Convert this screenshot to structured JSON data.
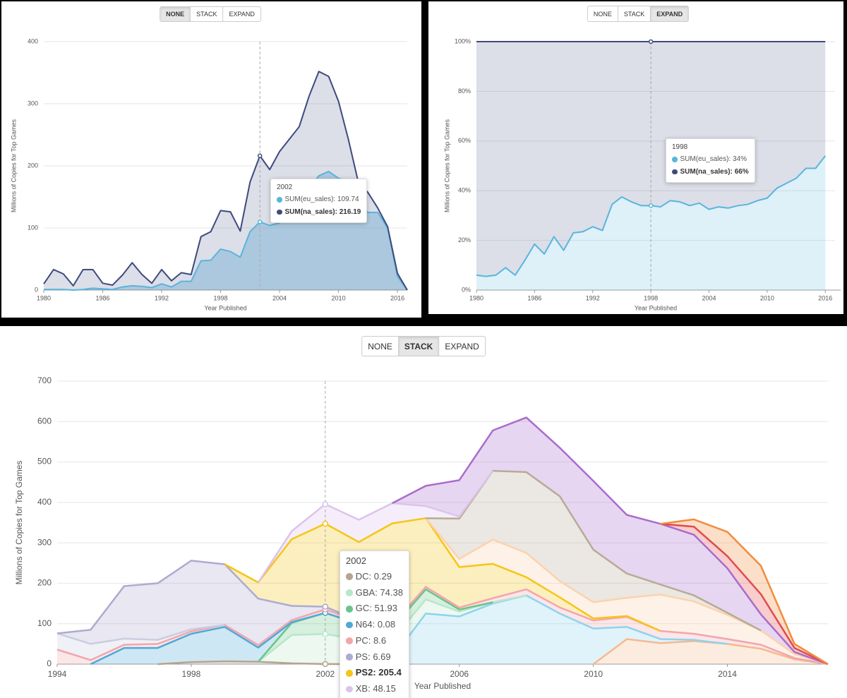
{
  "chart_data": [
    {
      "type": "area",
      "stacked": false,
      "grid": true,
      "controls": [
        "NONE",
        "STACK",
        "EXPAND"
      ],
      "active_control": 0,
      "xlabel": "Year Published",
      "ylabel": "Millions of Copies for Top Games",
      "x": [
        1980,
        1981,
        1982,
        1983,
        1984,
        1985,
        1986,
        1987,
        1988,
        1989,
        1990,
        1991,
        1992,
        1993,
        1994,
        1995,
        1996,
        1997,
        1998,
        1999,
        2000,
        2001,
        2002,
        2003,
        2004,
        2005,
        2006,
        2007,
        2008,
        2009,
        2010,
        2011,
        2012,
        2013,
        2014,
        2015,
        2016,
        2017
      ],
      "xlim": [
        1980,
        2017
      ],
      "xticks": [
        1980,
        1986,
        1992,
        1998,
        2004,
        2010,
        2016
      ],
      "ylim": [
        0,
        400
      ],
      "yticks": [
        0,
        100,
        200,
        300,
        400
      ],
      "series": [
        {
          "color": "#5ab4dc",
          "values": [
            1,
            1,
            1,
            0,
            1,
            3,
            2,
            1,
            5,
            7,
            6,
            4,
            10,
            5,
            14,
            14,
            47,
            48,
            66,
            62,
            53,
            94,
            109.74,
            104,
            108,
            130,
            150,
            165,
            184,
            191,
            180,
            175,
            140,
            125,
            125,
            100,
            22,
            0
          ]
        },
        {
          "color": "#3f4a7e",
          "values": [
            10,
            33,
            26,
            7,
            33,
            33,
            11,
            8,
            24,
            44,
            25,
            11,
            33,
            15,
            28,
            25,
            86,
            94,
            128,
            126,
            95,
            174,
            216.19,
            194,
            223,
            243,
            263,
            312,
            352,
            344,
            304,
            243,
            175,
            157,
            132,
            102,
            27,
            0
          ]
        }
      ],
      "tooltip": {
        "title": "2002",
        "lines": [
          {
            "text": "SUM(eu_sales): 109.74",
            "color": "#5ab4dc"
          },
          {
            "text": "SUM(na_sales): 216.19",
            "color": "#3f4a7e",
            "bold": true
          }
        ]
      }
    },
    {
      "type": "area",
      "stacked": true,
      "grid": true,
      "controls": [
        "NONE",
        "STACK",
        "EXPAND"
      ],
      "active_control": 2,
      "xlabel": "Year Published",
      "ylabel": "Millions of Copies for Top Games",
      "x": [
        1980,
        1981,
        1982,
        1983,
        1984,
        1985,
        1986,
        1987,
        1988,
        1989,
        1990,
        1991,
        1992,
        1993,
        1994,
        1995,
        1996,
        1997,
        1998,
        1999,
        2000,
        2001,
        2002,
        2003,
        2004,
        2005,
        2006,
        2007,
        2008,
        2009,
        2010,
        2011,
        2012,
        2013,
        2014,
        2015,
        2016
      ],
      "xlim": [
        1980,
        2017
      ],
      "xticks": [
        1980,
        1986,
        1992,
        1998,
        2004,
        2010,
        2016
      ],
      "ylim": [
        0,
        100
      ],
      "yticks": [
        {
          "value": 0,
          "label": "0%"
        },
        {
          "value": 20,
          "label": "20%"
        },
        {
          "value": 40,
          "label": "40%"
        },
        {
          "value": 60,
          "label": "60%"
        },
        {
          "value": 80,
          "label": "80%"
        },
        {
          "value": 100,
          "label": "100%"
        }
      ],
      "series": [
        {
          "color": "#5ab4dc",
          "values": [
            6,
            5.5,
            6,
            9,
            6,
            12,
            18.5,
            14.5,
            21.5,
            16,
            23,
            23.5,
            25.5,
            24,
            34.5,
            37.5,
            35.5,
            34,
            34,
            33.5,
            36,
            35.5,
            34,
            35,
            32.5,
            33.5,
            33,
            34,
            34.5,
            36,
            37,
            41,
            43,
            45,
            49,
            49,
            54
          ]
        },
        {
          "color": "#3f4a7e",
          "values": [
            94,
            94.5,
            94,
            91,
            94,
            88,
            81.5,
            85.5,
            78.5,
            84,
            77,
            76.5,
            74.5,
            76,
            65.5,
            62.5,
            64.5,
            66,
            66,
            66.5,
            64,
            64.5,
            66,
            65,
            67.5,
            66.5,
            67,
            66,
            65.5,
            64,
            63,
            59,
            57,
            55,
            51,
            51,
            46
          ]
        }
      ],
      "tooltip": {
        "title": "1998",
        "lines": [
          {
            "text": "SUM(eu_sales): 34%",
            "color": "#5ab4dc"
          },
          {
            "text": "SUM(na_sales): 66%",
            "color": "#3f4a7e",
            "bold": true
          }
        ]
      }
    },
    {
      "type": "area",
      "stacked": true,
      "grid": true,
      "controls": [
        "NONE",
        "STACK",
        "EXPAND"
      ],
      "active_control": 1,
      "xlabel": "Year Published",
      "ylabel": "Millions of Copies for Top Games",
      "x": [
        1994,
        1995,
        1996,
        1997,
        1998,
        1999,
        2000,
        2001,
        2002,
        2003,
        2004,
        2005,
        2006,
        2007,
        2008,
        2009,
        2010,
        2011,
        2012,
        2013,
        2014,
        2015,
        2016,
        2017
      ],
      "xlim": [
        1994,
        2017
      ],
      "xticks": [
        1994,
        1998,
        2002,
        2006,
        2010,
        2014
      ],
      "ylim": [
        0,
        700
      ],
      "yticks": [
        0,
        100,
        200,
        300,
        400,
        500,
        600,
        700
      ],
      "series": [
        {
          "color": "#f6b98f",
          "values": [
            0,
            0,
            0,
            0,
            0,
            0,
            0,
            0,
            0,
            0,
            0,
            0,
            0,
            0,
            0,
            0,
            0,
            62,
            52,
            57,
            50,
            38,
            12,
            0
          ]
        },
        {
          "color": "#b5a48f",
          "values": [
            0,
            0,
            0,
            0,
            5,
            7,
            6,
            2,
            0.29,
            0,
            0,
            0,
            0,
            0,
            0,
            0,
            0,
            0,
            0,
            0,
            0,
            0,
            0,
            0
          ]
        },
        {
          "color": "#8ed3ee",
          "values": [
            0,
            0,
            0,
            0,
            0,
            0,
            0,
            0,
            0,
            0,
            15,
            125,
            118,
            150,
            170,
            125,
            88,
            30,
            10,
            3,
            0,
            0,
            0,
            0
          ]
        },
        {
          "color": "#b9e6c9",
          "values": [
            0,
            0,
            0,
            0,
            0,
            0,
            0,
            70,
            74.38,
            60,
            45,
            35,
            12,
            3,
            0,
            0,
            0,
            0,
            0,
            0,
            0,
            0,
            0,
            0
          ]
        },
        {
          "color": "#6cc48a",
          "values": [
            0,
            0,
            0,
            0,
            0,
            0,
            0,
            30,
            51.93,
            40,
            30,
            25,
            5,
            0,
            0,
            0,
            0,
            0,
            0,
            0,
            0,
            0,
            0,
            0
          ]
        },
        {
          "color": "#4fa9d6",
          "values": [
            0,
            0,
            40,
            40,
            70,
            85,
            35,
            2,
            0.08,
            0,
            0,
            0,
            0,
            0,
            0,
            0,
            0,
            0,
            0,
            0,
            0,
            0,
            0,
            0
          ]
        },
        {
          "color": "#f2a5ad",
          "values": [
            36,
            10,
            8,
            10,
            6,
            5,
            6,
            5,
            8.6,
            5,
            8,
            6,
            5,
            10,
            15,
            15,
            20,
            25,
            20,
            15,
            12,
            10,
            3,
            0
          ]
        },
        {
          "color": "#c9cde0",
          "values": [
            40,
            40,
            15,
            10,
            5,
            0,
            0,
            0,
            0,
            0,
            0,
            0,
            0,
            0,
            0,
            0,
            0,
            0,
            0,
            0,
            0,
            0,
            0,
            0
          ]
        },
        {
          "color": "#aeaad0",
          "values": [
            0,
            35,
            130,
            140,
            170,
            150,
            115,
            35,
            6.69,
            2,
            0,
            0,
            0,
            0,
            0,
            0,
            0,
            0,
            0,
            0,
            0,
            0,
            0,
            0
          ]
        },
        {
          "color": "#f5c518",
          "values": [
            0,
            0,
            0,
            0,
            0,
            0,
            40,
            165,
            205.4,
            195,
            250,
            170,
            100,
            85,
            30,
            25,
            5,
            2,
            0,
            0,
            0,
            0,
            0,
            0
          ]
        },
        {
          "color": "#fcd2ad",
          "values": [
            0,
            0,
            0,
            0,
            0,
            0,
            0,
            0,
            0,
            0,
            0,
            0,
            20,
            60,
            60,
            40,
            40,
            45,
            90,
            80,
            60,
            35,
            10,
            0
          ]
        },
        {
          "color": "#b8aa96",
          "values": [
            0,
            0,
            0,
            0,
            0,
            0,
            0,
            0,
            0,
            0,
            0,
            0,
            100,
            170,
            200,
            210,
            130,
            60,
            25,
            15,
            5,
            0,
            0,
            0
          ]
        },
        {
          "color": "#dcc3ec",
          "values": [
            0,
            0,
            0,
            0,
            0,
            0,
            0,
            20,
            48.15,
            55,
            50,
            30,
            5,
            0,
            0,
            0,
            0,
            0,
            0,
            0,
            0,
            0,
            0,
            0
          ]
        },
        {
          "color": "#a96ccc",
          "values": [
            0,
            0,
            0,
            0,
            0,
            0,
            0,
            0,
            0,
            0,
            0,
            50,
            90,
            100,
            135,
            120,
            170,
            145,
            150,
            150,
            110,
            40,
            5,
            0
          ]
        },
        {
          "color": "#e24a4f",
          "values": [
            0,
            0,
            0,
            0,
            0,
            0,
            0,
            0,
            0,
            0,
            0,
            0,
            0,
            0,
            0,
            0,
            0,
            0,
            0,
            20,
            30,
            50,
            10,
            0
          ]
        },
        {
          "color": "#f18c3e",
          "values": [
            0,
            0,
            0,
            0,
            0,
            0,
            0,
            0,
            0,
            0,
            0,
            0,
            0,
            0,
            0,
            0,
            0,
            0,
            0,
            18,
            60,
            70,
            10,
            0
          ]
        }
      ],
      "tooltip": {
        "title": "2002",
        "lines": [
          {
            "text": "DC: 0.29",
            "color": "#b5a48f"
          },
          {
            "text": "GBA: 74.38",
            "color": "#b9e6c9"
          },
          {
            "text": "GC: 51.93",
            "color": "#6cc48a"
          },
          {
            "text": "N64: 0.08",
            "color": "#4fa9d6"
          },
          {
            "text": "PC: 8.6",
            "color": "#f2a5ad"
          },
          {
            "text": "PS: 6.69",
            "color": "#aeaad0"
          },
          {
            "text": "PS2: 205.4",
            "color": "#f5c518",
            "bold": true
          },
          {
            "text": "XB: 48.15",
            "color": "#dcc3ec"
          }
        ]
      }
    }
  ]
}
